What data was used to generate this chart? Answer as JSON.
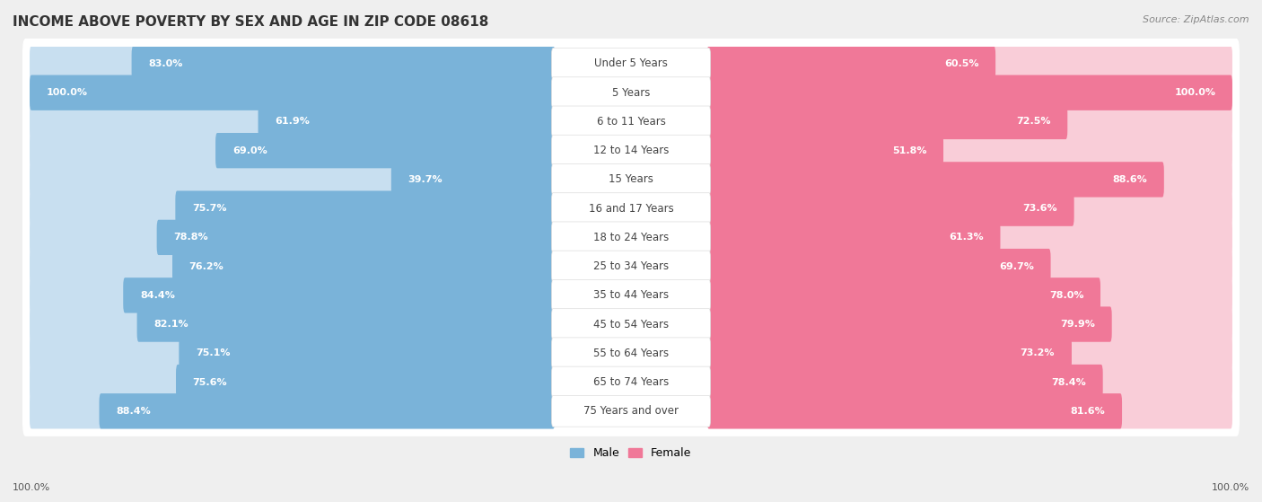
{
  "title": "INCOME ABOVE POVERTY BY SEX AND AGE IN ZIP CODE 08618",
  "source": "Source: ZipAtlas.com",
  "categories": [
    "Under 5 Years",
    "5 Years",
    "6 to 11 Years",
    "12 to 14 Years",
    "15 Years",
    "16 and 17 Years",
    "18 to 24 Years",
    "25 to 34 Years",
    "35 to 44 Years",
    "45 to 54 Years",
    "55 to 64 Years",
    "65 to 74 Years",
    "75 Years and over"
  ],
  "male_values": [
    83.0,
    100.0,
    61.9,
    69.0,
    39.7,
    75.7,
    78.8,
    76.2,
    84.4,
    82.1,
    75.1,
    75.6,
    88.4
  ],
  "female_values": [
    60.5,
    100.0,
    72.5,
    51.8,
    88.6,
    73.6,
    61.3,
    69.7,
    78.0,
    79.9,
    73.2,
    78.4,
    81.6
  ],
  "male_color": "#7ab3d9",
  "female_color": "#f07898",
  "male_light_color": "#c8dff0",
  "female_light_color": "#f9cdd8",
  "background_color": "#efefef",
  "row_bg_color": "#ffffff",
  "label_bg_color": "#ffffff",
  "title_fontsize": 11,
  "label_fontsize": 8.5,
  "value_fontsize": 8,
  "max_value": 100.0
}
